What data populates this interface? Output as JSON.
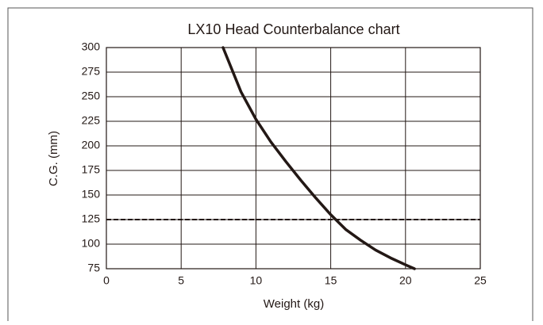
{
  "chart_data": {
    "type": "line",
    "title": "LX10 Head Counterbalance chart",
    "x_label": "Weight (kg)",
    "y_label": "C.G. (mm)",
    "x": [
      7.8,
      9,
      10,
      11,
      12,
      13,
      14,
      15,
      16,
      17,
      18,
      19,
      20,
      20.6
    ],
    "series": [
      {
        "color": "#231815",
        "values": [
          300,
          255,
          227,
          204,
          184,
          165,
          147,
          130,
          115,
          104,
          94,
          86,
          79,
          75
        ]
      }
    ],
    "reference_line": {
      "y": 125,
      "color": "#231815",
      "style": "dashed"
    },
    "xlim": [
      0,
      25
    ],
    "xticks": [
      0,
      5,
      10,
      15,
      20,
      25
    ],
    "ylim": [
      75,
      300
    ],
    "yticks": [
      75,
      100,
      125,
      150,
      175,
      200,
      225,
      250,
      275,
      300
    ],
    "grid": true
  }
}
